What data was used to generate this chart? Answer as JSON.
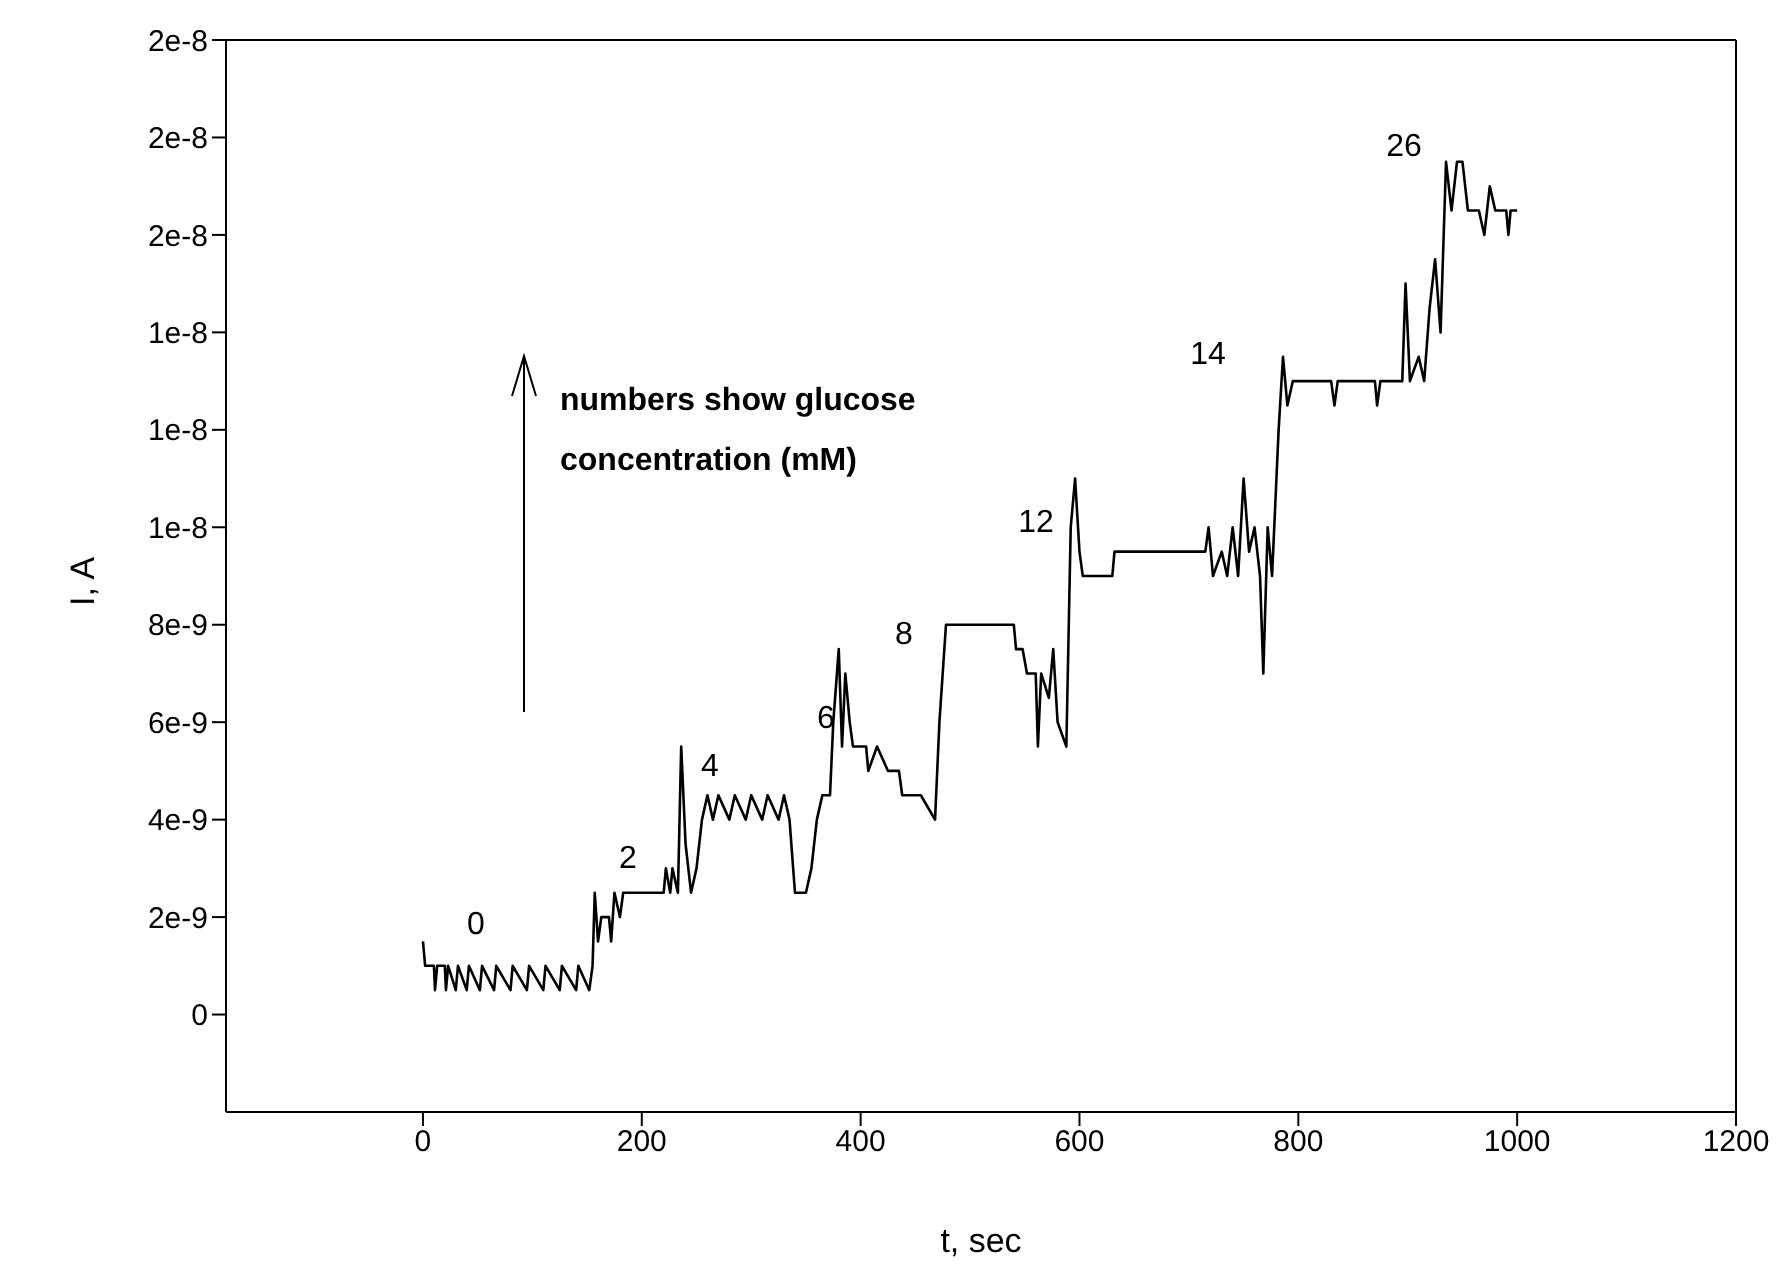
{
  "chart_data": {
    "type": "line",
    "xlabel": "t, sec",
    "ylabel": "I, A",
    "xlim": [
      -180,
      1200
    ],
    "xticks": [
      0,
      200,
      400,
      600,
      800,
      1000,
      1200
    ],
    "ylim": [
      -2e-09,
      2e-08
    ],
    "yticks": [
      0,
      {
        "value": 2e-09,
        "label": "2e-9"
      },
      {
        "value": 4e-09,
        "label": "4e-9"
      },
      {
        "value": 6e-09,
        "label": "6e-9"
      },
      {
        "value": 8e-09,
        "label": "8e-9"
      },
      {
        "value": 1e-08,
        "label": "1e-8"
      },
      {
        "value": 1.2e-08,
        "label": "1e-8"
      },
      {
        "value": 1.4e-08,
        "label": "1e-8"
      },
      {
        "value": 1.6e-08,
        "label": "2e-8"
      },
      {
        "value": 1.8e-08,
        "label": "2e-8"
      },
      {
        "value": 2e-08,
        "label": "2e-8"
      }
    ],
    "marker": "none",
    "line_style": "solid",
    "series": [
      {
        "color": "#000000",
        "x": [
          0,
          2,
          10,
          11,
          13,
          20,
          21,
          23,
          30,
          32,
          40,
          42,
          52,
          54,
          65,
          67,
          80,
          82,
          95,
          97,
          110,
          112,
          125,
          127,
          140,
          142,
          152,
          155,
          157,
          160,
          163,
          170,
          172,
          175,
          180,
          183,
          220,
          222,
          226,
          228,
          233,
          236,
          240,
          245,
          250,
          255,
          260,
          265,
          270,
          280,
          285,
          295,
          300,
          310,
          315,
          325,
          330,
          335,
          340,
          350,
          355,
          360,
          365,
          372,
          375,
          380,
          383,
          386,
          390,
          393,
          405,
          407,
          415,
          425,
          435,
          438,
          455,
          468,
          472,
          478,
          540,
          542,
          548,
          552,
          560,
          562,
          565,
          572,
          576,
          580,
          588,
          592,
          596,
          600,
          603,
          630,
          632,
          715,
          718,
          722,
          730,
          735,
          740,
          745,
          750,
          755,
          760,
          765,
          768,
          772,
          776,
          782,
          786,
          790,
          795,
          830,
          833,
          836,
          870,
          872,
          875,
          895,
          898,
          902,
          910,
          915,
          920,
          925,
          930,
          935,
          940,
          945,
          950,
          955,
          965,
          970,
          975,
          980,
          990,
          992,
          994,
          1000
        ],
        "values": [
          1.5e-09,
          1e-09,
          1e-09,
          5e-10,
          1e-09,
          1e-09,
          5e-10,
          1e-09,
          5e-10,
          1e-09,
          5e-10,
          1e-09,
          5e-10,
          1e-09,
          5e-10,
          1e-09,
          5e-10,
          1e-09,
          5e-10,
          1e-09,
          5e-10,
          1e-09,
          5e-10,
          1e-09,
          5e-10,
          1e-09,
          5e-10,
          1e-09,
          2.5e-09,
          1.5e-09,
          2e-09,
          2e-09,
          1.5e-09,
          2.5e-09,
          2e-09,
          2.5e-09,
          2.5e-09,
          3e-09,
          2.5e-09,
          3e-09,
          2.5e-09,
          5.5e-09,
          3.5e-09,
          2.5e-09,
          3e-09,
          4e-09,
          4.5e-09,
          4e-09,
          4.5e-09,
          4e-09,
          4.5e-09,
          4e-09,
          4.5e-09,
          4e-09,
          4.5e-09,
          4e-09,
          4.5e-09,
          4e-09,
          2.5e-09,
          2.5e-09,
          3e-09,
          4e-09,
          4.5e-09,
          4.5e-09,
          6e-09,
          7.5e-09,
          5.5e-09,
          7e-09,
          6e-09,
          5.5e-09,
          5.5e-09,
          5e-09,
          5.5e-09,
          5e-09,
          5e-09,
          4.5e-09,
          4.5e-09,
          4e-09,
          6e-09,
          8e-09,
          8e-09,
          7.5e-09,
          7.5e-09,
          7e-09,
          7e-09,
          5.5e-09,
          7e-09,
          6.5e-09,
          7.5e-09,
          6e-09,
          5.5e-09,
          1e-08,
          1.1e-08,
          9.5e-09,
          9e-09,
          9e-09,
          9.5e-09,
          9.5e-09,
          1e-08,
          9e-09,
          9.5e-09,
          9e-09,
          1e-08,
          9e-09,
          1.1e-08,
          9.5e-09,
          1e-08,
          9e-09,
          7e-09,
          1e-08,
          9e-09,
          1.2e-08,
          1.35e-08,
          1.25e-08,
          1.3e-08,
          1.3e-08,
          1.25e-08,
          1.3e-08,
          1.3e-08,
          1.25e-08,
          1.3e-08,
          1.3e-08,
          1.5e-08,
          1.3e-08,
          1.35e-08,
          1.3e-08,
          1.45e-08,
          1.55e-08,
          1.4e-08,
          1.75e-08,
          1.65e-08,
          1.75e-08,
          1.75e-08,
          1.65e-08,
          1.65e-08,
          1.6e-08,
          1.7e-08,
          1.65e-08,
          1.65e-08,
          1.6e-08,
          1.65e-08,
          1.65e-08
        ]
      }
    ],
    "annotations": [
      "numbers show glucose concentration (mM)",
      "0",
      "2",
      "4",
      "6",
      "8",
      "12",
      "14",
      "26"
    ]
  }
}
